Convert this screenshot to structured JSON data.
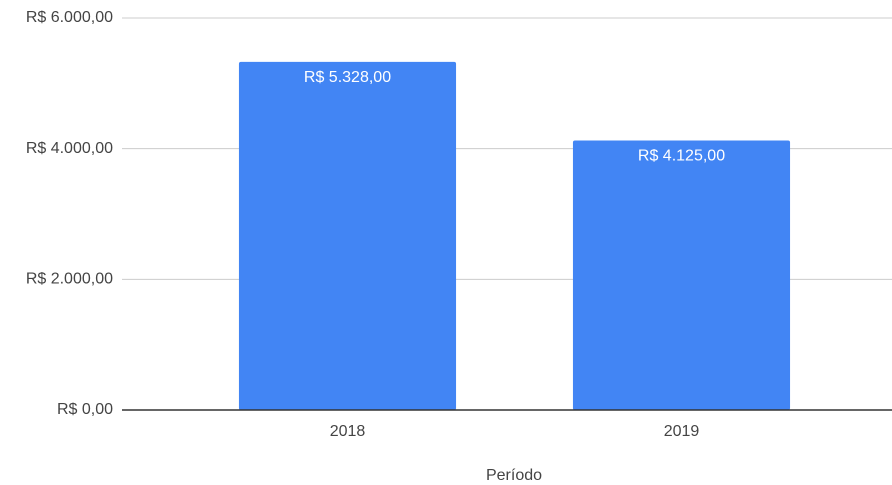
{
  "chart_data": {
    "type": "bar",
    "x_label": "Período",
    "categories": [
      "2018",
      "2019"
    ],
    "values": [
      5328,
      4125
    ],
    "value_labels": [
      "R$ 5.328,00",
      "R$ 4.125,00"
    ],
    "color": "#4285f4",
    "ylim": [
      0,
      6000
    ],
    "yticks": [
      {
        "value": 0,
        "label": "R$ 0,00"
      },
      {
        "value": 2000,
        "label": "R$ 2.000,00"
      },
      {
        "value": 4000,
        "label": "R$ 4.000,00"
      },
      {
        "value": 6000,
        "label": "R$ 6.000,00"
      }
    ],
    "grid": true
  }
}
